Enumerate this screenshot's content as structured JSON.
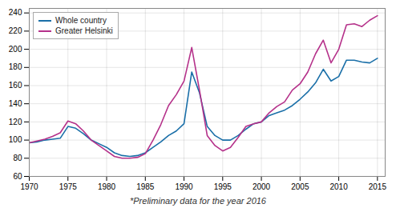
{
  "chart_data": {
    "type": "line",
    "annotation": "*Preliminary data for the year 2016",
    "x": [
      1970,
      1971,
      1972,
      1973,
      1974,
      1975,
      1976,
      1977,
      1978,
      1979,
      1980,
      1981,
      1982,
      1983,
      1984,
      1985,
      1986,
      1987,
      1988,
      1989,
      1990,
      1991,
      1992,
      1993,
      1994,
      1995,
      1996,
      1997,
      1998,
      1999,
      2000,
      2001,
      2002,
      2003,
      2004,
      2005,
      2006,
      2007,
      2008,
      2009,
      2010,
      2011,
      2012,
      2013,
      2014,
      2015
    ],
    "series": [
      {
        "name": "Whole country",
        "color": "#1a6fa8",
        "values": [
          97,
          98,
          100,
          101,
          102,
          115,
          113,
          107,
          100,
          96,
          92,
          86,
          83,
          82,
          83,
          86,
          92,
          98,
          105,
          110,
          118,
          175,
          152,
          115,
          105,
          100,
          100,
          105,
          112,
          118,
          120,
          127,
          130,
          133,
          138,
          145,
          153,
          163,
          178,
          165,
          170,
          188,
          188,
          186,
          185,
          190
        ]
      },
      {
        "name": "Greater Helsinki",
        "color": "#b5318a",
        "values": [
          97,
          99,
          101,
          104,
          108,
          121,
          118,
          110,
          100,
          94,
          88,
          82,
          80,
          80,
          81,
          85,
          100,
          117,
          138,
          150,
          165,
          202,
          155,
          105,
          94,
          88,
          92,
          103,
          115,
          118,
          120,
          130,
          137,
          142,
          155,
          162,
          175,
          195,
          210,
          185,
          200,
          227,
          228,
          225,
          232,
          237
        ]
      }
    ],
    "xlim": [
      1970,
      2016
    ],
    "ylim": [
      60,
      245
    ],
    "xticks": [
      1970,
      1975,
      1980,
      1985,
      1990,
      1995,
      2000,
      2005,
      2010,
      2015
    ],
    "yticks": [
      60,
      80,
      100,
      120,
      140,
      160,
      180,
      200,
      220,
      240
    ],
    "grid": true,
    "legend": "upper left"
  }
}
